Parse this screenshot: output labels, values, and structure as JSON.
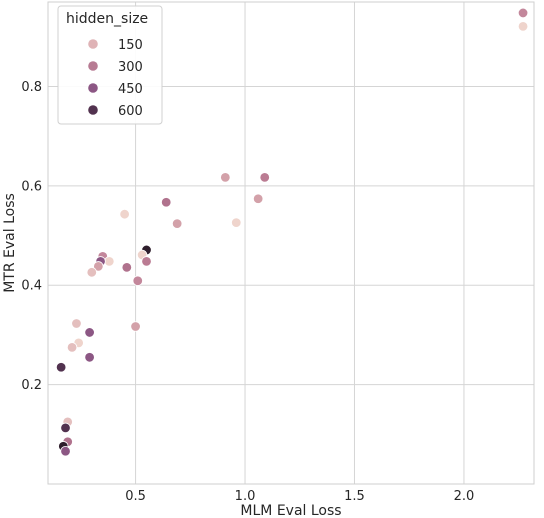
{
  "chart_data": {
    "type": "scatter",
    "title": "",
    "xlabel": "MLM Eval Loss",
    "ylabel": "MTR Eval Loss",
    "xlim": [
      0.1,
      2.32
    ],
    "ylim": [
      0.0,
      0.97
    ],
    "xticks": [
      0.5,
      1.0,
      1.5,
      2.0
    ],
    "yticks": [
      0.2,
      0.4,
      0.6,
      0.8
    ],
    "xtick_labels": [
      "0.5",
      "1.0",
      "1.5",
      "2.0"
    ],
    "ytick_labels": [
      "0.2",
      "0.4",
      "0.6",
      "0.8"
    ],
    "grid": true,
    "legend": {
      "title": "hidden_size",
      "placement": "top-left",
      "entries": [
        {
          "label": "150",
          "color": "#dfb3b6"
        },
        {
          "label": "300",
          "color": "#b77b93"
        },
        {
          "label": "450",
          "color": "#8c5784"
        },
        {
          "label": "600",
          "color": "#52324f"
        }
      ]
    },
    "points": [
      {
        "x": 2.27,
        "y": 0.921,
        "color": "#efd4cc"
      },
      {
        "x": 2.27,
        "y": 0.948,
        "color": "#c3879b"
      },
      {
        "x": 0.91,
        "y": 0.617,
        "color": "#d3a1a9"
      },
      {
        "x": 1.09,
        "y": 0.617,
        "color": "#bb7c93"
      },
      {
        "x": 1.06,
        "y": 0.574,
        "color": "#d3a1a9"
      },
      {
        "x": 0.96,
        "y": 0.526,
        "color": "#efd4cc"
      },
      {
        "x": 0.64,
        "y": 0.567,
        "color": "#b0728d"
      },
      {
        "x": 0.69,
        "y": 0.524,
        "color": "#d3a1a9"
      },
      {
        "x": 0.45,
        "y": 0.543,
        "color": "#efd4cc"
      },
      {
        "x": 0.55,
        "y": 0.471,
        "color": "#2e1e2c"
      },
      {
        "x": 0.53,
        "y": 0.461,
        "color": "#efd4cc"
      },
      {
        "x": 0.55,
        "y": 0.448,
        "color": "#bb7c93"
      },
      {
        "x": 0.35,
        "y": 0.458,
        "color": "#c3879b"
      },
      {
        "x": 0.38,
        "y": 0.448,
        "color": "#efd4cc"
      },
      {
        "x": 0.34,
        "y": 0.448,
        "color": "#8c5784"
      },
      {
        "x": 0.33,
        "y": 0.438,
        "color": "#d3a1a9"
      },
      {
        "x": 0.46,
        "y": 0.436,
        "color": "#b0728d"
      },
      {
        "x": 0.3,
        "y": 0.426,
        "color": "#e4bfbe"
      },
      {
        "x": 0.51,
        "y": 0.409,
        "color": "#c3879b"
      },
      {
        "x": 0.23,
        "y": 0.323,
        "color": "#e4bfbe"
      },
      {
        "x": 0.5,
        "y": 0.317,
        "color": "#d3a1a9"
      },
      {
        "x": 0.29,
        "y": 0.305,
        "color": "#8c5784"
      },
      {
        "x": 0.24,
        "y": 0.284,
        "color": "#efd4cc"
      },
      {
        "x": 0.21,
        "y": 0.275,
        "color": "#e4bfbe"
      },
      {
        "x": 0.29,
        "y": 0.255,
        "color": "#8c5784"
      },
      {
        "x": 0.16,
        "y": 0.235,
        "color": "#52324f"
      },
      {
        "x": 0.19,
        "y": 0.125,
        "color": "#e4bfbe"
      },
      {
        "x": 0.18,
        "y": 0.113,
        "color": "#52324f"
      },
      {
        "x": 0.19,
        "y": 0.085,
        "color": "#b0728d"
      },
      {
        "x": 0.17,
        "y": 0.076,
        "color": "#2e1e2c"
      },
      {
        "x": 0.18,
        "y": 0.066,
        "color": "#8c5784"
      }
    ]
  }
}
